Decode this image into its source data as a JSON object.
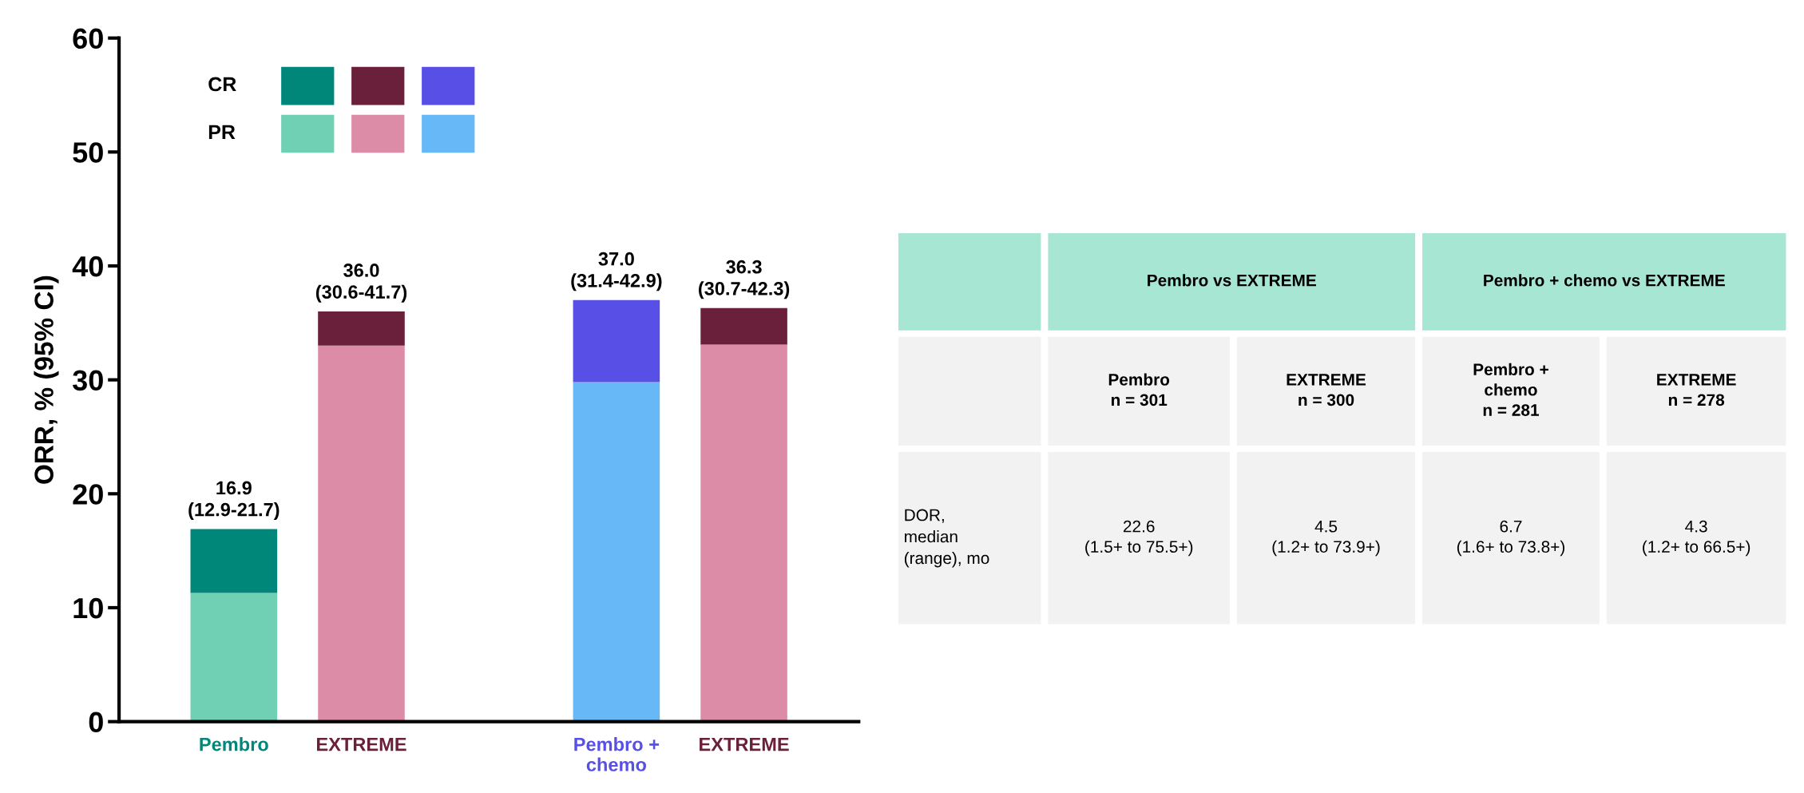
{
  "chart_data": [
    {
      "type": "bar",
      "stacked": true,
      "ylabel": "ORR, % (95% CI)",
      "categories": [
        "Pembro",
        "EXTREME",
        null,
        "Pembro +\nchemo",
        "EXTREME"
      ],
      "series": [
        {
          "name": "PR",
          "colors": [
            "#70d0b4",
            "#dd8ca8",
            null,
            "#67b8f7",
            "#dd8ca8"
          ],
          "values": [
            11.3,
            33.0,
            null,
            29.8,
            33.1
          ]
        },
        {
          "name": "CR",
          "colors": [
            "#00877a",
            "#6a1f3a",
            null,
            "#5850e6",
            "#6a1f3a"
          ],
          "values": [
            5.6,
            3.0,
            null,
            7.2,
            3.2
          ]
        }
      ],
      "totals": [
        "16.9\n(12.9-21.7)",
        "36.0\n(30.6-41.7)",
        null,
        "37.0\n(31.4-42.9)",
        "36.3\n(30.7-42.3)"
      ],
      "ylim": [
        0,
        60
      ],
      "yticks": [
        0,
        10,
        20,
        30,
        40,
        50,
        60
      ],
      "legend": "top left",
      "grid": false
    },
    {
      "type": "other",
      "colors": [
        "#a8e6d4",
        "#f3f2f2",
        "#f3f2f2"
      ],
      "cell_labels": [
        [
          null,
          "Pembro vs EXTREME",
          null,
          "Pembro + chemo vs EXTREME",
          null
        ],
        [
          null,
          "Pembro\nn = 301",
          "EXTREME\nn = 300",
          "Pembro +\nchemo\nn = 281",
          "EXTREME\nn = 278"
        ],
        [
          "DOR,\nmedian\n(range), mo",
          "22.6\n(1.5+ to 75.5+)",
          "4.5\n(1.2+ to 73.9+)",
          "6.7\n(1.6+ to 73.8+)",
          "4.3\n(1.2+ to 66.5+)"
        ]
      ]
    }
  ]
}
